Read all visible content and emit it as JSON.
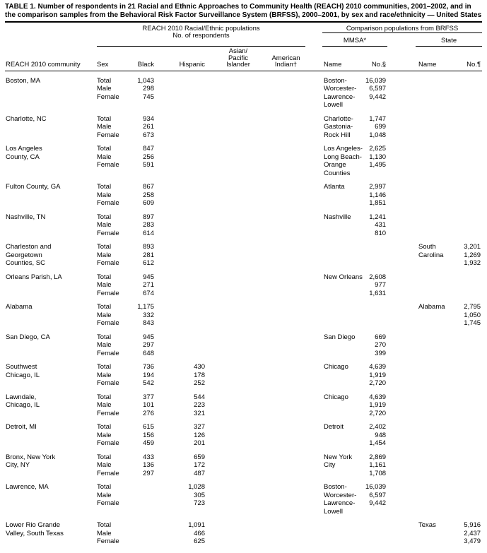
{
  "title": "TABLE 1. Number of respondents in 21 Racial and Ethnic Approaches to Community Health (REACH) 2010 communities, 2001–2002, and in the comparison samples from the Behavioral Risk Factor Surveillance System (BRFSS), 2000–2001, by sex and race/ethnicity — United States",
  "header": {
    "reach_group_line1": "REACH 2010 Racial/Ethnic populations",
    "reach_group_line2": "No. of respondents",
    "comparison_group": "Comparison populations from BRFSS",
    "mmsa": "MMSA*",
    "state": "State",
    "col_community": "REACH 2010 community",
    "col_sex": "Sex",
    "col_black": "Black",
    "col_hispanic": "Hispanic",
    "col_asian": "Asian/\nPacific\nIslander",
    "col_indian": "American\nIndian†",
    "col_mmsa_name": "Name",
    "col_mmsa_no": "No.§",
    "col_state_name": "Name",
    "col_state_no": "No.¶"
  },
  "groups": [
    {
      "rows": [
        [
          "Boston, MA",
          "Total",
          "1,043",
          "",
          "",
          "",
          "Boston-",
          "16,039",
          "",
          ""
        ],
        [
          "",
          "Male",
          "298",
          "",
          "",
          "",
          "Worcester-",
          "6,597",
          "",
          ""
        ],
        [
          "",
          "Female",
          "745",
          "",
          "",
          "",
          "Lawrence-",
          "9,442",
          "",
          ""
        ],
        [
          "",
          "",
          "",
          "",
          "",
          "",
          "Lowell",
          "",
          "",
          ""
        ]
      ]
    },
    {
      "rows": [
        [
          "Charlotte, NC",
          "Total",
          "934",
          "",
          "",
          "",
          "Charlotte-",
          "1,747",
          "",
          ""
        ],
        [
          "",
          "Male",
          "261",
          "",
          "",
          "",
          "Gastonia-",
          "699",
          "",
          ""
        ],
        [
          "",
          "Female",
          "673",
          "",
          "",
          "",
          "Rock Hill",
          "1,048",
          "",
          ""
        ]
      ]
    },
    {
      "rows": [
        [
          "Los Angeles",
          "Total",
          "847",
          "",
          "",
          "",
          "Los Angeles-",
          "2,625",
          "",
          ""
        ],
        [
          "County, CA",
          "Male",
          "256",
          "",
          "",
          "",
          "Long Beach-",
          "1,130",
          "",
          ""
        ],
        [
          "",
          "Female",
          "591",
          "",
          "",
          "",
          "Orange",
          "1,495",
          "",
          ""
        ],
        [
          "",
          "",
          "",
          "",
          "",
          "",
          "Counties",
          "",
          "",
          ""
        ]
      ]
    },
    {
      "rows": [
        [
          "Fulton County, GA",
          "Total",
          "867",
          "",
          "",
          "",
          "Atlanta",
          "2,997",
          "",
          ""
        ],
        [
          "",
          "Male",
          "258",
          "",
          "",
          "",
          "",
          "1,146",
          "",
          ""
        ],
        [
          "",
          "Female",
          "609",
          "",
          "",
          "",
          "",
          "1,851",
          "",
          ""
        ]
      ]
    },
    {
      "rows": [
        [
          "Nashville, TN",
          "Total",
          "897",
          "",
          "",
          "",
          "Nashville",
          "1,241",
          "",
          ""
        ],
        [
          "",
          "Male",
          "283",
          "",
          "",
          "",
          "",
          "431",
          "",
          ""
        ],
        [
          "",
          "Female",
          "614",
          "",
          "",
          "",
          "",
          "810",
          "",
          ""
        ]
      ]
    },
    {
      "rows": [
        [
          "Charleston and",
          "Total",
          "893",
          "",
          "",
          "",
          "",
          "",
          "South",
          "3,201"
        ],
        [
          "Georgetown",
          "Male",
          "281",
          "",
          "",
          "",
          "",
          "",
          "Carolina",
          "1,269"
        ],
        [
          "Counties, SC",
          "Female",
          "612",
          "",
          "",
          "",
          "",
          "",
          "",
          "1,932"
        ]
      ]
    },
    {
      "rows": [
        [
          "Orleans Parish, LA",
          "Total",
          "945",
          "",
          "",
          "",
          "New Orleans",
          "2,608",
          "",
          ""
        ],
        [
          "",
          "Male",
          "271",
          "",
          "",
          "",
          "",
          "977",
          "",
          ""
        ],
        [
          "",
          "Female",
          "674",
          "",
          "",
          "",
          "",
          "1,631",
          "",
          ""
        ]
      ]
    },
    {
      "rows": [
        [
          "Alabama",
          "Total",
          "1,175",
          "",
          "",
          "",
          "",
          "",
          "Alabama",
          "2,795"
        ],
        [
          "",
          "Male",
          "332",
          "",
          "",
          "",
          "",
          "",
          "",
          "1,050"
        ],
        [
          "",
          "Female",
          "843",
          "",
          "",
          "",
          "",
          "",
          "",
          "1,745"
        ]
      ]
    },
    {
      "rows": [
        [
          "San Diego, CA",
          "Total",
          "945",
          "",
          "",
          "",
          "San Diego",
          "669",
          "",
          ""
        ],
        [
          "",
          "Male",
          "297",
          "",
          "",
          "",
          "",
          "270",
          "",
          ""
        ],
        [
          "",
          "Female",
          "648",
          "",
          "",
          "",
          "",
          "399",
          "",
          ""
        ]
      ]
    },
    {
      "rows": [
        [
          "Southwest",
          "Total",
          "736",
          "430",
          "",
          "",
          "Chicago",
          "4,639",
          "",
          ""
        ],
        [
          "Chicago, IL",
          "Male",
          "194",
          "178",
          "",
          "",
          "",
          "1,919",
          "",
          ""
        ],
        [
          "",
          "Female",
          "542",
          "252",
          "",
          "",
          "",
          "2,720",
          "",
          ""
        ]
      ]
    },
    {
      "rows": [
        [
          "Lawndale,",
          "Total",
          "377",
          "544",
          "",
          "",
          "Chicago",
          "4,639",
          "",
          ""
        ],
        [
          "Chicago, IL",
          "Male",
          "101",
          "223",
          "",
          "",
          "",
          "1,919",
          "",
          ""
        ],
        [
          "",
          "Female",
          "276",
          "321",
          "",
          "",
          "",
          "2,720",
          "",
          ""
        ]
      ]
    },
    {
      "rows": [
        [
          "Detroit, MI",
          "Total",
          "615",
          "327",
          "",
          "",
          "Detroit",
          "2,402",
          "",
          ""
        ],
        [
          "",
          "Male",
          "156",
          "126",
          "",
          "",
          "",
          "948",
          "",
          ""
        ],
        [
          "",
          "Female",
          "459",
          "201",
          "",
          "",
          "",
          "1,454",
          "",
          ""
        ]
      ]
    },
    {
      "rows": [
        [
          "Bronx, New York",
          "Total",
          "433",
          "659",
          "",
          "",
          "New York",
          "2,869",
          "",
          ""
        ],
        [
          "City, NY",
          "Male",
          "136",
          "172",
          "",
          "",
          "City",
          "1,161",
          "",
          ""
        ],
        [
          "",
          "Female",
          "297",
          "487",
          "",
          "",
          "",
          "1,708",
          "",
          ""
        ]
      ]
    },
    {
      "rows": [
        [
          "Lawrence, MA",
          "Total",
          "",
          "1,028",
          "",
          "",
          "Boston-",
          "16,039",
          "",
          ""
        ],
        [
          "",
          "Male",
          "",
          "305",
          "",
          "",
          "Worcester-",
          "6,597",
          "",
          ""
        ],
        [
          "",
          "Female",
          "",
          "723",
          "",
          "",
          "Lawrence-",
          "9,442",
          "",
          ""
        ],
        [
          "",
          "",
          "",
          "",
          "",
          "",
          "Lowell",
          "",
          "",
          ""
        ]
      ]
    },
    {
      "rows": [
        [
          "Lower Rio Grande",
          "Total",
          "",
          "1,091",
          "",
          "",
          "",
          "",
          "Texas",
          "5,916"
        ],
        [
          "Valley, South Texas",
          "Male",
          "",
          "466",
          "",
          "",
          "",
          "",
          "",
          "2,437"
        ],
        [
          "",
          "Female",
          "",
          "625",
          "",
          "",
          "",
          "",
          "",
          "3,479"
        ]
      ]
    }
  ]
}
